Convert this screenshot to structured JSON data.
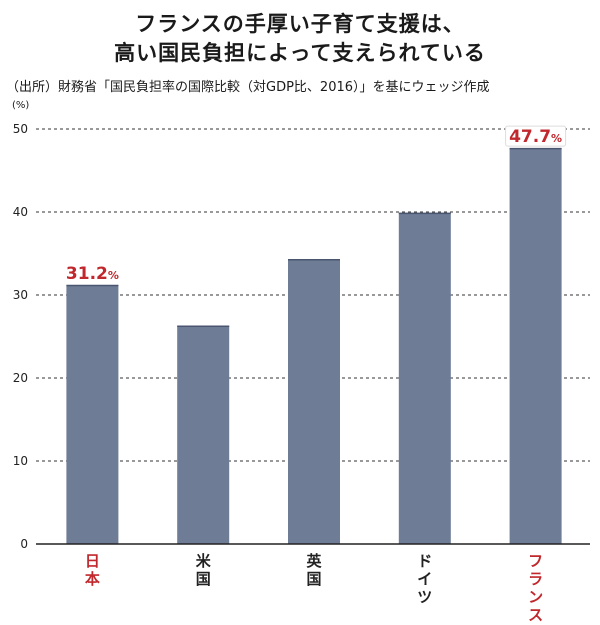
{
  "header": {
    "title_line1": "フランスの手厚い子育て支援は、",
    "title_line2": "高い国民負担によって支えられている",
    "source": "（出所）財務省「国民負担率の国際比較（対GDP比、2016）」を基にウェッジ作成",
    "unit": "(%)"
  },
  "chart_data": {
    "type": "bar",
    "categories": [
      "日本",
      "米国",
      "英国",
      "ドイツ",
      "フランス"
    ],
    "values": [
      31.2,
      26.3,
      34.3,
      39.9,
      47.7
    ],
    "ylim": [
      0,
      50
    ],
    "yticks": [
      0,
      10,
      20,
      30,
      40,
      50
    ],
    "grid": true,
    "bar_color": "#6e7c96",
    "highlight_color": "#c0282d",
    "highlighted": [
      "日本",
      "フランス"
    ],
    "data_labels": [
      {
        "category": "日本",
        "value": "31.2",
        "unit": "%"
      },
      {
        "category": "フランス",
        "value": "47.7",
        "unit": "%"
      }
    ]
  }
}
